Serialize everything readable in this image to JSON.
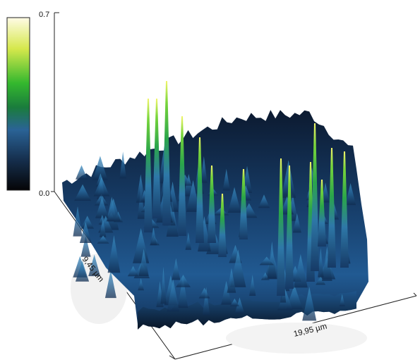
{
  "colorbar": {
    "max_label": "0.7",
    "min_label": "0.0",
    "max_value": 0.7,
    "min_value": 0.0,
    "colors": [
      "#0a0a12",
      "#1c3a66",
      "#2e6a9a",
      "#1f8a3a",
      "#39c22e",
      "#d8e84a",
      "#fffbe0"
    ]
  },
  "axes": {
    "depth_label": "9,45 µm",
    "width_label": "19,95 µm"
  },
  "surface": {
    "colors": {
      "low": "#0b1b33",
      "mid": "#1e4f86",
      "high": "#2f7fb4",
      "peak_green": "#3ec33a",
      "peak_yellow": "#e6f25a"
    }
  }
}
